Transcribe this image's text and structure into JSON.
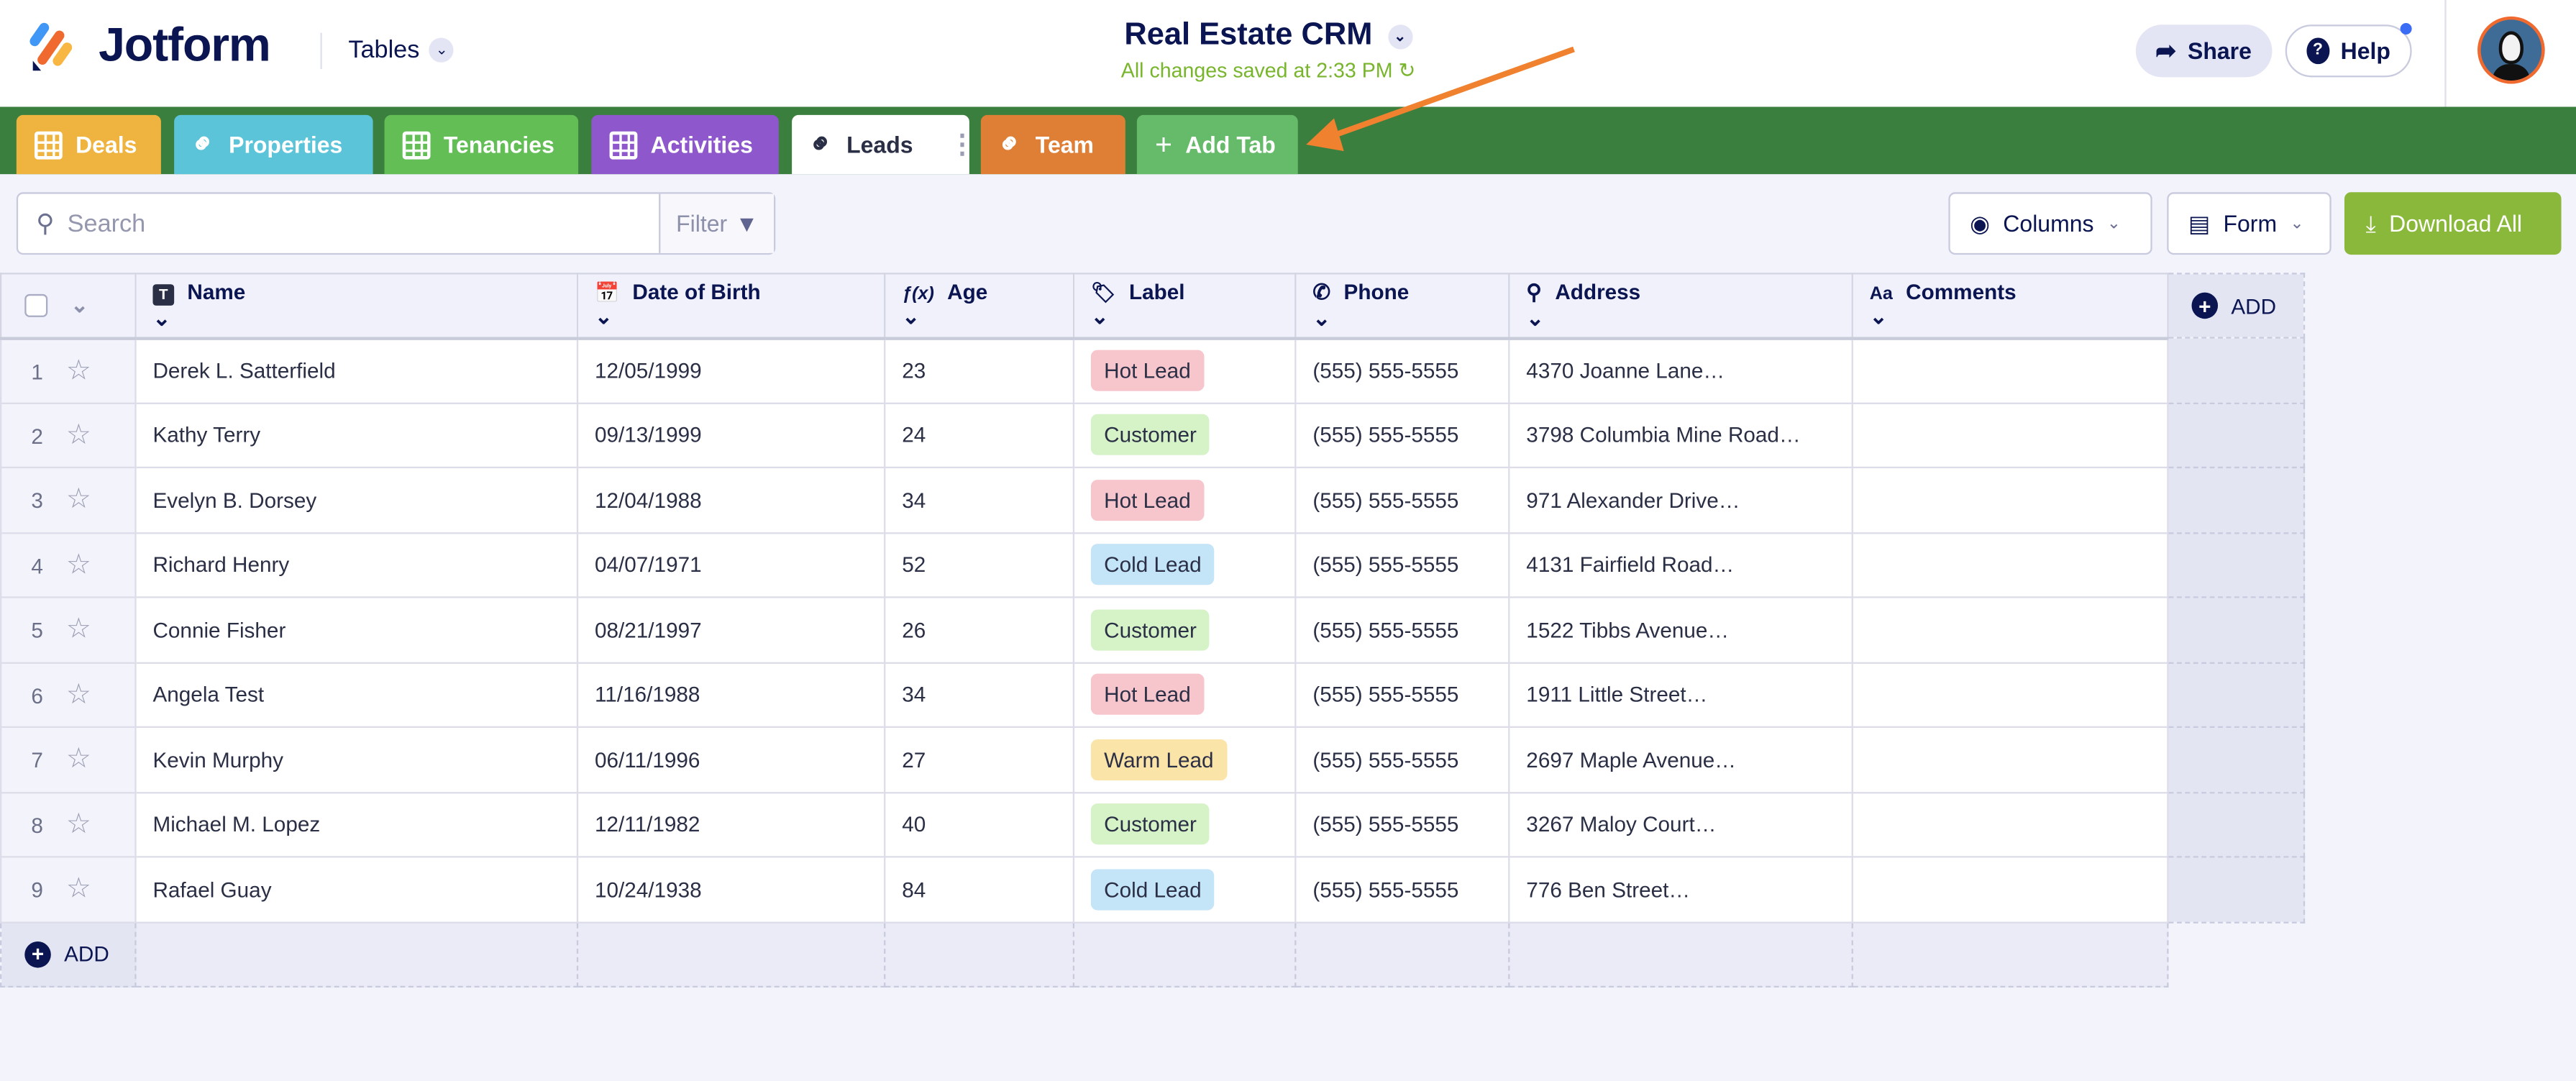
{
  "header": {
    "brand": "Jotform",
    "product": "Tables",
    "title": "Real Estate CRM",
    "save_status": "All changes saved at 2:33 PM",
    "share_label": "Share",
    "help_label": "Help"
  },
  "tabs": [
    {
      "label": "Deals",
      "icon": "grid-icon",
      "color": "#efb340"
    },
    {
      "label": "Properties",
      "icon": "link-icon",
      "color": "#5cc4d9"
    },
    {
      "label": "Tenancies",
      "icon": "grid-icon",
      "color": "#62be55"
    },
    {
      "label": "Activities",
      "icon": "grid-icon",
      "color": "#8f57cc"
    },
    {
      "label": "Leads",
      "icon": "link-icon",
      "color": "#ffffff",
      "active": true
    },
    {
      "label": "Team",
      "icon": "link-icon",
      "color": "#de7f35"
    },
    {
      "label": "Add Tab",
      "icon": "plus-icon",
      "color": "#66bb6a"
    }
  ],
  "toolbar": {
    "search_placeholder": "Search",
    "filter_label": "Filter",
    "columns_label": "Columns",
    "form_label": "Form",
    "download_label": "Download All"
  },
  "table": {
    "columns": [
      {
        "label": "Name",
        "icon": "T"
      },
      {
        "label": "Date of Birth",
        "icon": "10"
      },
      {
        "label": "Age",
        "icon": "f(x)"
      },
      {
        "label": "Label",
        "icon": "tag"
      },
      {
        "label": "Phone",
        "icon": "phone"
      },
      {
        "label": "Address",
        "icon": "pin"
      },
      {
        "label": "Comments",
        "icon": "Aa"
      }
    ],
    "add_column_label": "ADD",
    "add_row_label": "ADD",
    "rows": [
      [
        "1",
        "Derek L. Satterfield",
        "12/05/1999",
        "23",
        "Hot Lead",
        "(555) 555-5555",
        "4370 Joanne Lane…",
        ""
      ],
      [
        "2",
        "Kathy Terry",
        "09/13/1999",
        "24",
        "Customer",
        "(555) 555-5555",
        "3798 Columbia Mine Road…",
        ""
      ],
      [
        "3",
        "Evelyn B. Dorsey",
        "12/04/1988",
        "34",
        "Hot Lead",
        "(555) 555-5555",
        "971 Alexander Drive…",
        ""
      ],
      [
        "4",
        "Richard Henry",
        "04/07/1971",
        "52",
        "Cold Lead",
        "(555) 555-5555",
        "4131 Fairfield Road…",
        ""
      ],
      [
        "5",
        "Connie Fisher",
        "08/21/1997",
        "26",
        "Customer",
        "(555) 555-5555",
        "1522 Tibbs Avenue…",
        ""
      ],
      [
        "6",
        "Angela Test",
        "11/16/1988",
        "34",
        "Hot Lead",
        "(555) 555-5555",
        "1911 Little Street…",
        ""
      ],
      [
        "7",
        "Kevin Murphy",
        "06/11/1996",
        "27",
        "Warm Lead",
        "(555) 555-5555",
        "2697 Maple Avenue…",
        ""
      ],
      [
        "8",
        "Michael M. Lopez",
        "12/11/1982",
        "40",
        "Customer",
        "(555) 555-5555",
        "3267 Maloy Court…",
        ""
      ],
      [
        "9",
        "Rafael Guay",
        "10/24/1938",
        "84",
        "Cold Lead",
        "(555) 555-5555",
        "776 Ben Street…",
        ""
      ]
    ]
  },
  "label_colors": {
    "Hot Lead": "#f7c6cd",
    "Customer": "#d6f3c8",
    "Cold Lead": "#c4e4f8",
    "Warm Lead": "#fbe4a8"
  },
  "colors": {
    "tabbar": "#3b7f3e",
    "download": "#8ab83a",
    "status": "#78b52c",
    "arrow": "#f0812f"
  }
}
